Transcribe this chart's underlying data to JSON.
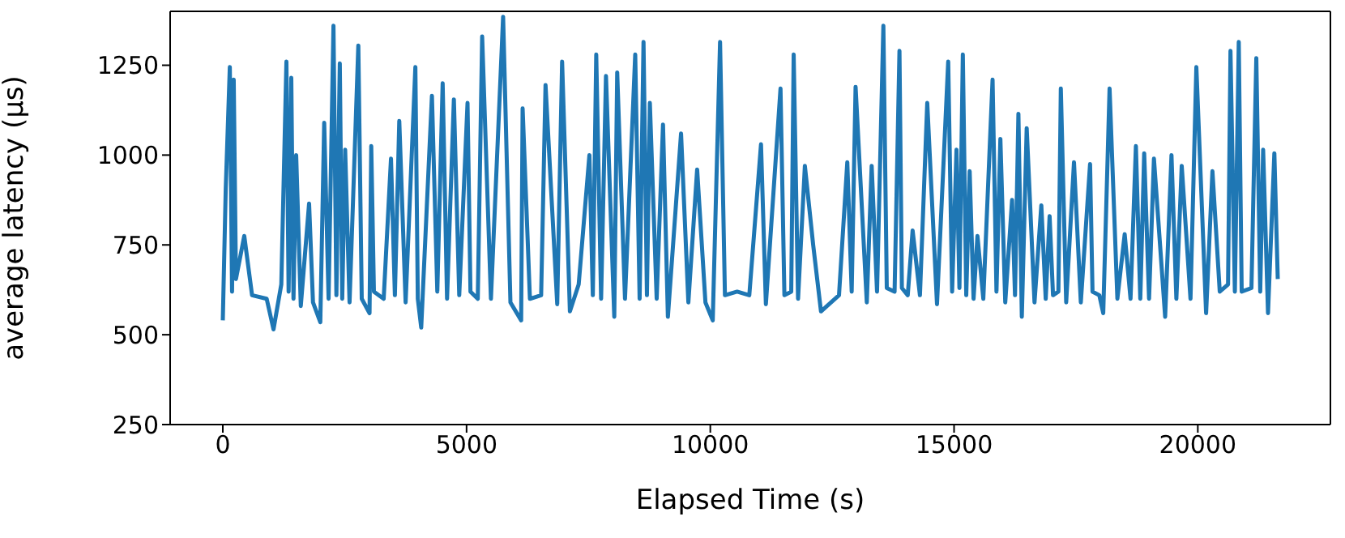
{
  "chart_data": {
    "type": "line",
    "xlabel": "Elapsed Time (s)",
    "ylabel": "average latency (µs)",
    "color": "#1f77b4",
    "xlim": [
      -1080,
      22720
    ],
    "ylim": [
      250,
      1400
    ],
    "xticks": [
      0,
      5000,
      10000,
      15000,
      20000
    ],
    "yticks": [
      250,
      500,
      750,
      1000,
      1250
    ],
    "x": [
      0,
      60,
      144,
      190,
      224,
      270,
      440,
      600,
      800,
      900,
      1040,
      1200,
      1305,
      1350,
      1405,
      1450,
      1505,
      1600,
      1770,
      1850,
      2000,
      2080,
      2170,
      2270,
      2330,
      2400,
      2450,
      2510,
      2600,
      2780,
      2850,
      3010,
      3045,
      3100,
      3180,
      3300,
      3450,
      3530,
      3620,
      3750,
      3950,
      4000,
      4070,
      4290,
      4400,
      4510,
      4600,
      4740,
      4850,
      5020,
      5080,
      5150,
      5230,
      5320,
      5500,
      5750,
      5900,
      6120,
      6150,
      6300,
      6450,
      6530,
      6620,
      6860,
      6960,
      7120,
      7300,
      7520,
      7590,
      7660,
      7760,
      7860,
      8030,
      8090,
      8250,
      8460,
      8550,
      8630,
      8700,
      8760,
      8900,
      9030,
      9130,
      9400,
      9550,
      9730,
      9900,
      10050,
      10200,
      10300,
      10470,
      10550,
      10640,
      10800,
      11040,
      11140,
      11440,
      11520,
      11610,
      11660,
      11710,
      11800,
      11940,
      12110,
      12270,
      12540,
      12640,
      12810,
      12900,
      12980,
      13210,
      13310,
      13420,
      13550,
      13620,
      13680,
      13780,
      13880,
      13930,
      13980,
      14050,
      14150,
      14300,
      14450,
      14650,
      14880,
      14960,
      15050,
      15110,
      15180,
      15250,
      15320,
      15400,
      15480,
      15600,
      15790,
      15870,
      15950,
      16050,
      16190,
      16250,
      16320,
      16390,
      16490,
      16650,
      16790,
      16880,
      16960,
      17030,
      17090,
      17140,
      17190,
      17300,
      17460,
      17600,
      17790,
      17840,
      17890,
      17980,
      18060,
      18190,
      18350,
      18500,
      18620,
      18730,
      18820,
      18900,
      19000,
      19100,
      19330,
      19460,
      19560,
      19670,
      19850,
      19970,
      20030,
      20170,
      20300,
      20450,
      20570,
      20620,
      20670,
      20760,
      20840,
      20900,
      20970,
      21100,
      21200,
      21280,
      21340,
      21440,
      21570,
      21640
    ],
    "values": [
      540,
      905,
      1245,
      620,
      1210,
      655,
      775,
      610,
      null,
      600,
      515,
      640,
      1260,
      620,
      1215,
      600,
      1000,
      580,
      865,
      590,
      535,
      1090,
      600,
      1360,
      610,
      1255,
      600,
      1015,
      590,
      1305,
      600,
      560,
      1025,
      620,
      null,
      600,
      990,
      610,
      1095,
      590,
      1245,
      600,
      520,
      1165,
      620,
      1200,
      600,
      1155,
      610,
      1145,
      620,
      null,
      600,
      1330,
      600,
      1385,
      590,
      540,
      1130,
      600,
      null,
      610,
      1195,
      585,
      1260,
      565,
      640,
      1000,
      610,
      1280,
      600,
      1220,
      550,
      1230,
      600,
      1280,
      600,
      1315,
      610,
      1145,
      600,
      1085,
      550,
      1060,
      590,
      960,
      590,
      540,
      1315,
      610,
      null,
      620,
      null,
      610,
      1030,
      585,
      1185,
      610,
      null,
      620,
      1280,
      600,
      970,
      750,
      565,
      null,
      610,
      980,
      620,
      1190,
      590,
      970,
      620,
      1360,
      630,
      null,
      620,
      1290,
      630,
      null,
      610,
      790,
      610,
      1145,
      585,
      1260,
      620,
      1015,
      630,
      1280,
      610,
      955,
      600,
      775,
      600,
      1210,
      620,
      1045,
      590,
      875,
      610,
      1115,
      550,
      1075,
      590,
      860,
      600,
      830,
      610,
      null,
      620,
      1185,
      590,
      980,
      590,
      975,
      620,
      null,
      610,
      560,
      1185,
      600,
      780,
      600,
      1025,
      600,
      1005,
      600,
      990,
      550,
      1000,
      600,
      970,
      600,
      1245,
      null,
      560,
      955,
      620,
      null,
      640,
      1290,
      620,
      1315,
      620,
      null,
      630,
      1270,
      620,
      1015,
      560,
      1005,
      655
    ]
  }
}
